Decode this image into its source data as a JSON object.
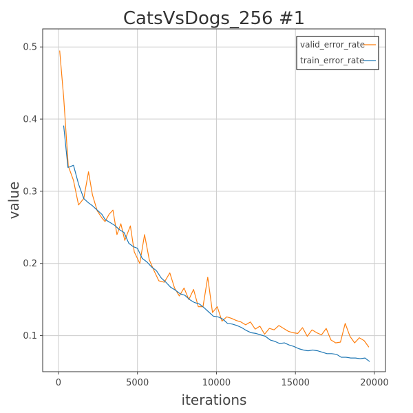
{
  "chart_data": {
    "type": "line",
    "title": "CatsVsDogs_256 #1",
    "xlabel": "iterations",
    "ylabel": "value",
    "xlim": [
      -1000,
      20700
    ],
    "ylim": [
      0.05,
      0.525
    ],
    "xticks": [
      0,
      5000,
      10000,
      15000,
      20000
    ],
    "yticks": [
      0.1,
      0.2,
      0.3,
      0.4,
      0.5
    ],
    "xtick_labels": [
      "0",
      "5000",
      "10000",
      "15000",
      "20000"
    ],
    "ytick_labels": [
      "0.1",
      "0.2",
      "0.3",
      "0.4",
      "0.5"
    ],
    "grid": true,
    "legend_position": "top-right",
    "series": [
      {
        "name": "valid_error_rate",
        "color": "#ff7f0e",
        "points": [
          [
            75,
            0.495
          ],
          [
            330,
            0.43
          ],
          [
            620,
            0.335
          ],
          [
            950,
            0.315
          ],
          [
            1270,
            0.281
          ],
          [
            1600,
            0.29
          ],
          [
            1900,
            0.327
          ],
          [
            2150,
            0.295
          ],
          [
            2450,
            0.273
          ],
          [
            2750,
            0.263
          ],
          [
            2950,
            0.258
          ],
          [
            3200,
            0.268
          ],
          [
            3450,
            0.274
          ],
          [
            3700,
            0.24
          ],
          [
            3950,
            0.255
          ],
          [
            4200,
            0.232
          ],
          [
            4550,
            0.252
          ],
          [
            4800,
            0.216
          ],
          [
            5150,
            0.2
          ],
          [
            5450,
            0.24
          ],
          [
            5750,
            0.205
          ],
          [
            6050,
            0.19
          ],
          [
            6350,
            0.176
          ],
          [
            6700,
            0.174
          ],
          [
            7050,
            0.187
          ],
          [
            7350,
            0.166
          ],
          [
            7650,
            0.155
          ],
          [
            7950,
            0.166
          ],
          [
            8250,
            0.15
          ],
          [
            8550,
            0.164
          ],
          [
            8850,
            0.14
          ],
          [
            9150,
            0.14
          ],
          [
            9450,
            0.181
          ],
          [
            9750,
            0.132
          ],
          [
            10050,
            0.14
          ],
          [
            10350,
            0.12
          ],
          [
            10650,
            0.126
          ],
          [
            10950,
            0.124
          ],
          [
            11250,
            0.121
          ],
          [
            11550,
            0.119
          ],
          [
            11850,
            0.115
          ],
          [
            12150,
            0.119
          ],
          [
            12450,
            0.109
          ],
          [
            12750,
            0.113
          ],
          [
            13050,
            0.102
          ],
          [
            13350,
            0.11
          ],
          [
            13650,
            0.108
          ],
          [
            13950,
            0.114
          ],
          [
            14250,
            0.11
          ],
          [
            14550,
            0.106
          ],
          [
            14850,
            0.104
          ],
          [
            15150,
            0.103
          ],
          [
            15450,
            0.111
          ],
          [
            15750,
            0.099
          ],
          [
            16050,
            0.108
          ],
          [
            16350,
            0.104
          ],
          [
            16650,
            0.101
          ],
          [
            16950,
            0.11
          ],
          [
            17250,
            0.094
          ],
          [
            17550,
            0.09
          ],
          [
            17850,
            0.091
          ],
          [
            18150,
            0.117
          ],
          [
            18450,
            0.099
          ],
          [
            18750,
            0.09
          ],
          [
            19050,
            0.097
          ],
          [
            19350,
            0.093
          ],
          [
            19650,
            0.084
          ]
        ]
      },
      {
        "name": "train_error_rate",
        "color": "#1f77b4",
        "points": [
          [
            330,
            0.391
          ],
          [
            600,
            0.333
          ],
          [
            950,
            0.336
          ],
          [
            1270,
            0.31
          ],
          [
            1600,
            0.29
          ],
          [
            1900,
            0.284
          ],
          [
            2150,
            0.28
          ],
          [
            2450,
            0.274
          ],
          [
            2750,
            0.268
          ],
          [
            2950,
            0.261
          ],
          [
            3250,
            0.257
          ],
          [
            3550,
            0.253
          ],
          [
            3850,
            0.247
          ],
          [
            4150,
            0.243
          ],
          [
            4450,
            0.228
          ],
          [
            4750,
            0.223
          ],
          [
            5000,
            0.221
          ],
          [
            5300,
            0.207
          ],
          [
            5600,
            0.202
          ],
          [
            5900,
            0.195
          ],
          [
            6200,
            0.19
          ],
          [
            6500,
            0.18
          ],
          [
            6800,
            0.174
          ],
          [
            7100,
            0.167
          ],
          [
            7400,
            0.163
          ],
          [
            7700,
            0.158
          ],
          [
            8000,
            0.156
          ],
          [
            8300,
            0.15
          ],
          [
            8600,
            0.146
          ],
          [
            8900,
            0.144
          ],
          [
            9200,
            0.139
          ],
          [
            9500,
            0.133
          ],
          [
            9800,
            0.127
          ],
          [
            10100,
            0.126
          ],
          [
            10400,
            0.123
          ],
          [
            10700,
            0.117
          ],
          [
            11000,
            0.116
          ],
          [
            11300,
            0.114
          ],
          [
            11600,
            0.111
          ],
          [
            11900,
            0.107
          ],
          [
            12200,
            0.104
          ],
          [
            12500,
            0.103
          ],
          [
            12800,
            0.101
          ],
          [
            13100,
            0.099
          ],
          [
            13400,
            0.094
          ],
          [
            13700,
            0.092
          ],
          [
            14000,
            0.089
          ],
          [
            14300,
            0.09
          ],
          [
            14600,
            0.087
          ],
          [
            14900,
            0.085
          ],
          [
            15200,
            0.082
          ],
          [
            15500,
            0.08
          ],
          [
            15800,
            0.079
          ],
          [
            16100,
            0.08
          ],
          [
            16400,
            0.079
          ],
          [
            16700,
            0.077
          ],
          [
            17000,
            0.075
          ],
          [
            17300,
            0.075
          ],
          [
            17600,
            0.074
          ],
          [
            17900,
            0.07
          ],
          [
            18200,
            0.07
          ],
          [
            18500,
            0.069
          ],
          [
            18800,
            0.069
          ],
          [
            19100,
            0.068
          ],
          [
            19400,
            0.069
          ],
          [
            19700,
            0.064
          ]
        ]
      }
    ]
  }
}
